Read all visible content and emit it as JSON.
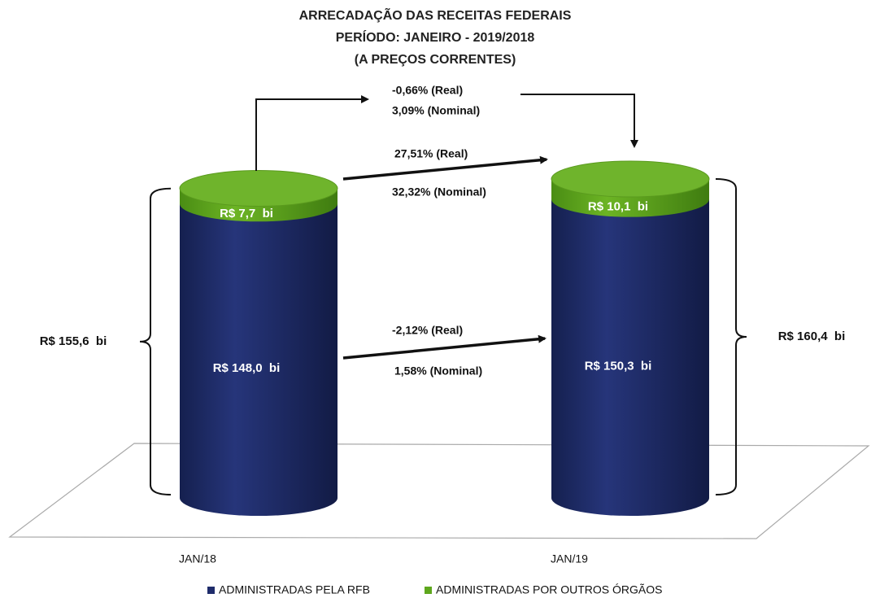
{
  "chart_data": {
    "type": "bar",
    "stacked": true,
    "title": [
      "ARRECADAÇÃO DAS RECEITAS FEDERAIS",
      "PERÍODO: JANEIRO - 2019/2018",
      "(A PREÇOS CORRENTES)"
    ],
    "categories": [
      "JAN/18",
      "JAN/19"
    ],
    "series": [
      {
        "name": "ADMINISTRADAS PELA RFB",
        "color": "#1f2c6b",
        "values": [
          148.0,
          150.3
        ],
        "value_labels": [
          "R$ 148,0  bi",
          "R$ 150,3  bi"
        ]
      },
      {
        "name": "ADMINISTRADAS POR OUTROS ÓRGÃOS",
        "color": "#5ea71d",
        "values": [
          7.7,
          10.1
        ],
        "value_labels": [
          "R$ 7,7  bi",
          "R$ 10,1  bi"
        ]
      }
    ],
    "totals": [
      155.6,
      160.4
    ],
    "total_labels": [
      "R$ 155,6  bi",
      "R$ 160,4  bi"
    ],
    "annotations": [
      "-0,66% (Real)",
      "3,09%  (Nominal)",
      "27,51%  (Real)",
      "32,32%  (Nominal)",
      "-2,12% (Real)",
      "1,58% (Nominal)"
    ]
  }
}
